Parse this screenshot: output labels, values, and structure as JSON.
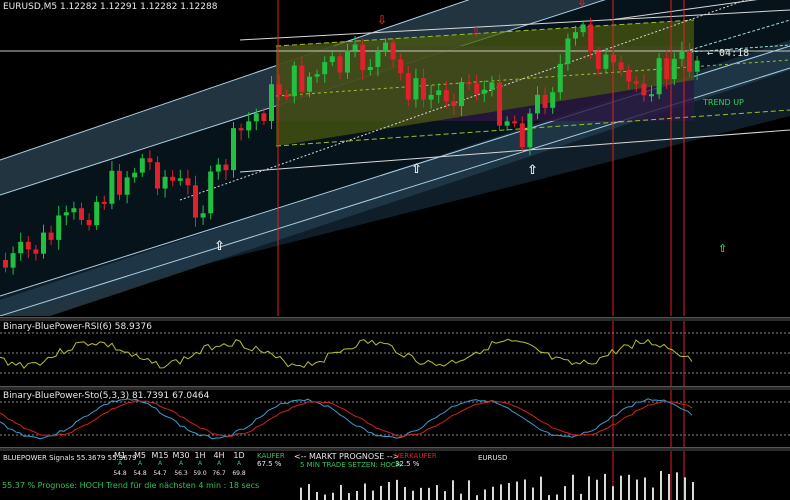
{
  "main": {
    "header": "EURUSD,M5  1.12282 1.12291 1.12282 1.12288",
    "price_tag": "← 04:18",
    "trend_label": "TREND UP"
  },
  "rsi": {
    "header": "Binary-BluePower-RSI(6) 58.9376"
  },
  "sto": {
    "header": "Binary-BluePower-Sto(5,3,3) 81.7391 67.0464"
  },
  "signals": {
    "header": "BLUEPOWER Signals 55.3679 55.3679",
    "symbol": "EURUSD",
    "timeframes": [
      {
        "label": "M1",
        "sub": "A",
        "value": "54.8"
      },
      {
        "label": "M5",
        "sub": "A",
        "value": "54.8"
      },
      {
        "label": "M15",
        "sub": "A",
        "value": "54.7"
      },
      {
        "label": "M30",
        "sub": "A",
        "value": "56.3"
      },
      {
        "label": "1H",
        "sub": "A",
        "value": "59.0"
      },
      {
        "label": "4H",
        "sub": "A",
        "value": "76.7"
      },
      {
        "label": "1D",
        "sub": "A",
        "value": "69.8"
      }
    ],
    "kaufer_label": "KAUFER",
    "kaufer_pct": "67.5 %",
    "markt_label": "<-- MARKT PROGNOSE -->",
    "trade_label": "5 MIN TRADE SETZEN: HOCH",
    "verkaufer_label": "VERKAUFER",
    "verkaufer_pct": "32.5 %",
    "prognose": "55.37 % Prognose: HOCH Trend für die nächsten 4 min : 18 secs"
  },
  "colors": {
    "bull": "#22c040",
    "bear": "#e0202a",
    "channel": "#6fa8c8",
    "zone": "#4a5a10",
    "vline": "#e02020",
    "rsi_line": "#b8c030",
    "sto_main": "#3a9ad0",
    "sto_signal": "#d02020"
  }
}
